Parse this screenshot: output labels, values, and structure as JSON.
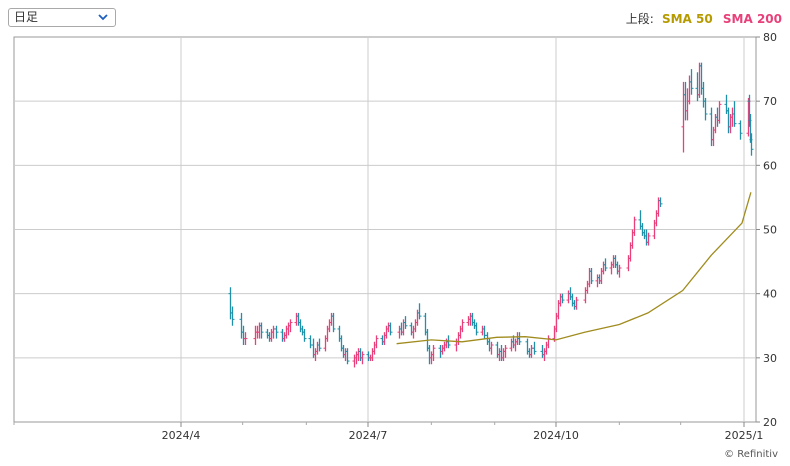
{
  "controls": {
    "period_select": {
      "value": "日足"
    }
  },
  "legend": {
    "panel_label": "上段:",
    "sma50_label": "SMA 50",
    "sma200_label": "SMA 200"
  },
  "copyright": "© Refinitiv",
  "colors": {
    "up": "#e8407a",
    "down": "#1e90a8",
    "sma50": "#a08c1e",
    "sma200": "#e8407a",
    "grid": "#cccccc"
  },
  "chart_data": {
    "type": "line",
    "title": "",
    "xlabel": "",
    "ylabel": "",
    "ylim": [
      20,
      80
    ],
    "y_ticks": [
      20,
      30,
      40,
      50,
      60,
      70,
      80
    ],
    "x_ticks": [
      "2024/4",
      "2024/7",
      "2024/10",
      "2025/1"
    ],
    "grid": true,
    "axis_position": "right",
    "legend_position": "top-right",
    "ohlc": [
      [
        "2024-04-25",
        40,
        41,
        36,
        37
      ],
      [
        "2024-04-26",
        37,
        38,
        35,
        36
      ],
      [
        "2024-04-30",
        36,
        37,
        33,
        34
      ],
      [
        "2024-05-01",
        34,
        35,
        32,
        33
      ],
      [
        "2024-05-02",
        33,
        34,
        32,
        33
      ],
      [
        "2024-05-07",
        33,
        35,
        32,
        34
      ],
      [
        "2024-05-08",
        34,
        35,
        33,
        34
      ],
      [
        "2024-05-09",
        34,
        35.5,
        33,
        35
      ],
      [
        "2024-05-10",
        35,
        35.5,
        33,
        34
      ],
      [
        "2024-05-13",
        34,
        34.5,
        33,
        33.5
      ],
      [
        "2024-05-14",
        33.5,
        34,
        32.5,
        33
      ],
      [
        "2024-05-15",
        33,
        34.5,
        32.5,
        34
      ],
      [
        "2024-05-16",
        34,
        35,
        33,
        34.5
      ],
      [
        "2024-05-17",
        34.5,
        35,
        33,
        34
      ],
      [
        "2024-05-20",
        34,
        34.5,
        32.5,
        33
      ],
      [
        "2024-05-21",
        33,
        34,
        32.5,
        33.5
      ],
      [
        "2024-05-22",
        33.5,
        35,
        33,
        34.5
      ],
      [
        "2024-05-23",
        34.5,
        35.5,
        33.5,
        35
      ],
      [
        "2024-05-24",
        35,
        36,
        34,
        35.5
      ],
      [
        "2024-05-27",
        35.5,
        37,
        35,
        36.5
      ],
      [
        "2024-05-28",
        36.5,
        37,
        35,
        35.5
      ],
      [
        "2024-05-29",
        35.5,
        36,
        34,
        34.5
      ],
      [
        "2024-05-30",
        34.5,
        35,
        33.5,
        34
      ],
      [
        "2024-05-31",
        34,
        34.5,
        32.5,
        33
      ],
      [
        "2024-06-03",
        33,
        33.5,
        31.5,
        32
      ],
      [
        "2024-06-04",
        32,
        33,
        30,
        30.5
      ],
      [
        "2024-06-05",
        30.5,
        31.5,
        29.5,
        31
      ],
      [
        "2024-06-06",
        31,
        32.5,
        30.5,
        32
      ],
      [
        "2024-06-07",
        32,
        33,
        31,
        31.5
      ],
      [
        "2024-06-10",
        31.5,
        33.5,
        31,
        33
      ],
      [
        "2024-06-11",
        33,
        35,
        32.5,
        34.5
      ],
      [
        "2024-06-12",
        34.5,
        36,
        34,
        35.5
      ],
      [
        "2024-06-13",
        35.5,
        37,
        35,
        36.5
      ],
      [
        "2024-06-14",
        36.5,
        37,
        34,
        34.5
      ],
      [
        "2024-06-17",
        34.5,
        35,
        32.5,
        33
      ],
      [
        "2024-06-18",
        33,
        33.5,
        31,
        31.5
      ],
      [
        "2024-06-19",
        31.5,
        32,
        30,
        30.5
      ],
      [
        "2024-06-20",
        30.5,
        31.5,
        29.5,
        31
      ],
      [
        "2024-06-21",
        31,
        31.5,
        29,
        29.5
      ],
      [
        "2024-06-24",
        29.5,
        30.5,
        28.5,
        30
      ],
      [
        "2024-06-25",
        30,
        31,
        29,
        30.5
      ],
      [
        "2024-06-26",
        30.5,
        31.5,
        29.5,
        31
      ],
      [
        "2024-06-27",
        31,
        31.5,
        29.5,
        30
      ],
      [
        "2024-06-28",
        30,
        31,
        29,
        30.5
      ],
      [
        "2024-07-01",
        30.5,
        31,
        29.5,
        30
      ],
      [
        "2024-07-02",
        30,
        30.5,
        29.5,
        30
      ],
      [
        "2024-07-03",
        30,
        31.5,
        29.5,
        31
      ],
      [
        "2024-07-04",
        31,
        32.5,
        30.5,
        32
      ],
      [
        "2024-07-05",
        32,
        33.5,
        31.5,
        33
      ],
      [
        "2024-07-08",
        33,
        33.5,
        32,
        32.5
      ],
      [
        "2024-07-09",
        32.5,
        34,
        32,
        33.5
      ],
      [
        "2024-07-10",
        33.5,
        35,
        33,
        34.5
      ],
      [
        "2024-07-11",
        34.5,
        35.5,
        34,
        35
      ],
      [
        "2024-07-12",
        35,
        35.5,
        33.5,
        34
      ],
      [
        "2024-07-16",
        34,
        35,
        33,
        34.5
      ],
      [
        "2024-07-17",
        34.5,
        35.5,
        33.5,
        34
      ],
      [
        "2024-07-18",
        34,
        36,
        33.5,
        35.5
      ],
      [
        "2024-07-19",
        35.5,
        36.5,
        34.5,
        35
      ],
      [
        "2024-07-22",
        35,
        35.5,
        33.5,
        34
      ],
      [
        "2024-07-23",
        34,
        35,
        33,
        34.5
      ],
      [
        "2024-07-24",
        34.5,
        36,
        34,
        35.5
      ],
      [
        "2024-07-25",
        35.5,
        37.5,
        35,
        37
      ],
      [
        "2024-07-26",
        37,
        38.5,
        36,
        36.5
      ],
      [
        "2024-07-29",
        36.5,
        37,
        33.5,
        34
      ],
      [
        "2024-07-30",
        34,
        34.5,
        31,
        31.5
      ],
      [
        "2024-07-31",
        31.5,
        32,
        29,
        30
      ],
      [
        "2024-08-01",
        30,
        31,
        29,
        30.5
      ],
      [
        "2024-08-02",
        30.5,
        32,
        29.5,
        31.5
      ],
      [
        "2024-08-05",
        31.5,
        32,
        30,
        31
      ],
      [
        "2024-08-06",
        31,
        32,
        30.5,
        31.5
      ],
      [
        "2024-08-07",
        31.5,
        32.5,
        31,
        32
      ],
      [
        "2024-08-08",
        32,
        33,
        31.5,
        32.5
      ],
      [
        "2024-08-09",
        32.5,
        33.5,
        31.5,
        32
      ],
      [
        "2024-08-13",
        32,
        33,
        31,
        32.5
      ],
      [
        "2024-08-14",
        32.5,
        34,
        32,
        33.5
      ],
      [
        "2024-08-15",
        33.5,
        35,
        33,
        34.5
      ],
      [
        "2024-08-16",
        34.5,
        36,
        34,
        35.5
      ],
      [
        "2024-08-19",
        35.5,
        36.5,
        35,
        36
      ],
      [
        "2024-08-20",
        36,
        37,
        35,
        36.5
      ],
      [
        "2024-08-21",
        36.5,
        37,
        35,
        35.5
      ],
      [
        "2024-08-22",
        35.5,
        36,
        34.5,
        35
      ],
      [
        "2024-08-23",
        35,
        35.5,
        33.5,
        34
      ],
      [
        "2024-08-26",
        34,
        35,
        33.5,
        34.5
      ],
      [
        "2024-08-27",
        34.5,
        35,
        33,
        33.5
      ],
      [
        "2024-08-28",
        33.5,
        34,
        32,
        32.5
      ],
      [
        "2024-08-29",
        32.5,
        33,
        31,
        31.5
      ],
      [
        "2024-08-30",
        31.5,
        32.5,
        30.5,
        32
      ],
      [
        "2024-09-02",
        32,
        32.5,
        30,
        30.5
      ],
      [
        "2024-09-03",
        30.5,
        31.5,
        29.5,
        31
      ],
      [
        "2024-09-04",
        31,
        32,
        29.5,
        30
      ],
      [
        "2024-09-05",
        30,
        31.5,
        29.5,
        31
      ],
      [
        "2024-09-06",
        31,
        32,
        30,
        31.5
      ],
      [
        "2024-09-09",
        31.5,
        33,
        31,
        32.5
      ],
      [
        "2024-09-10",
        32.5,
        33.5,
        31.5,
        32
      ],
      [
        "2024-09-11",
        32,
        33,
        31,
        32.5
      ],
      [
        "2024-09-12",
        32.5,
        34,
        32,
        33
      ],
      [
        "2024-09-13",
        33,
        34,
        32,
        32.5
      ],
      [
        "2024-09-17",
        32.5,
        33,
        30.5,
        31
      ],
      [
        "2024-09-18",
        31,
        31.5,
        30,
        30.5
      ],
      [
        "2024-09-19",
        30.5,
        32,
        30,
        31.5
      ],
      [
        "2024-09-20",
        31.5,
        32.5,
        30.5,
        31
      ],
      [
        "2024-09-24",
        31,
        32,
        30,
        30.5
      ],
      [
        "2024-09-25",
        30.5,
        31.5,
        29.5,
        31
      ],
      [
        "2024-09-26",
        31,
        32.5,
        30.5,
        32
      ],
      [
        "2024-09-27",
        32,
        33.5,
        31.5,
        33
      ],
      [
        "2024-09-30",
        33,
        35,
        32.5,
        34.5
      ],
      [
        "2024-10-01",
        34.5,
        37,
        34,
        36.5
      ],
      [
        "2024-10-02",
        36.5,
        39,
        36,
        38.5
      ],
      [
        "2024-10-03",
        38.5,
        40,
        38,
        39.5
      ],
      [
        "2024-10-04",
        39.5,
        40,
        38.5,
        39
      ],
      [
        "2024-10-07",
        39,
        40.5,
        38.5,
        40
      ],
      [
        "2024-10-08",
        40,
        41,
        39,
        39.5
      ],
      [
        "2024-10-09",
        39.5,
        40,
        38,
        38.5
      ],
      [
        "2024-10-10",
        38.5,
        39,
        37.5,
        38
      ],
      [
        "2024-10-11",
        38,
        39.5,
        37.5,
        39
      ],
      [
        "2024-10-15",
        39,
        41,
        38.5,
        40.5
      ],
      [
        "2024-10-16",
        40.5,
        42,
        40,
        41.5
      ],
      [
        "2024-10-17",
        41.5,
        44,
        41,
        43.5
      ],
      [
        "2024-10-18",
        43.5,
        44,
        41.5,
        42
      ],
      [
        "2024-10-21",
        42,
        43,
        41,
        42.5
      ],
      [
        "2024-10-22",
        42.5,
        43,
        41.5,
        42
      ],
      [
        "2024-10-23",
        42,
        44,
        41.5,
        43.5
      ],
      [
        "2024-10-24",
        43.5,
        45,
        43,
        44.5
      ],
      [
        "2024-10-25",
        44.5,
        45.5,
        43.5,
        44
      ],
      [
        "2024-10-28",
        44,
        45,
        43,
        44.5
      ],
      [
        "2024-10-29",
        44.5,
        46,
        44,
        45.5
      ],
      [
        "2024-10-30",
        45.5,
        46,
        44,
        44.5
      ],
      [
        "2024-10-31",
        44.5,
        45,
        43,
        43.5
      ],
      [
        "2024-11-01",
        43.5,
        44.5,
        42.5,
        44
      ],
      [
        "2024-11-05",
        44,
        46,
        43.5,
        45.5
      ],
      [
        "2024-11-06",
        45.5,
        48,
        45,
        47.5
      ],
      [
        "2024-11-07",
        47.5,
        50,
        47,
        49.5
      ],
      [
        "2024-11-08",
        49.5,
        52,
        49,
        51.5
      ],
      [
        "2024-11-11",
        51.5,
        53,
        50,
        50.5
      ],
      [
        "2024-11-12",
        50.5,
        51,
        49,
        49.5
      ],
      [
        "2024-11-13",
        49.5,
        50,
        48.5,
        49
      ],
      [
        "2024-11-14",
        49,
        50,
        47.5,
        48
      ],
      [
        "2024-11-15",
        48,
        49.5,
        47.5,
        49
      ],
      [
        "2024-11-18",
        49,
        51.5,
        48.5,
        51
      ],
      [
        "2024-11-19",
        51,
        53,
        50.5,
        52.5
      ],
      [
        "2024-11-20",
        52.5,
        55,
        52,
        54.5
      ],
      [
        "2024-11-21",
        54.5,
        55,
        53.5,
        54
      ],
      [
        "2024-12-02",
        66,
        73,
        62,
        71
      ],
      [
        "2024-12-03",
        71,
        73,
        67,
        68.5
      ],
      [
        "2024-12-04",
        68.5,
        72,
        67,
        70
      ],
      [
        "2024-12-05",
        70,
        74,
        69.5,
        73
      ],
      [
        "2024-12-06",
        73,
        75,
        71,
        72
      ],
      [
        "2024-12-09",
        72,
        74.5,
        70,
        71
      ],
      [
        "2024-12-10",
        71,
        76,
        70.5,
        75.5
      ],
      [
        "2024-12-11",
        75.5,
        76,
        71,
        72
      ],
      [
        "2024-12-12",
        72,
        73,
        69,
        70
      ],
      [
        "2024-12-13",
        70,
        70.5,
        67,
        68
      ],
      [
        "2024-12-16",
        68,
        69,
        63,
        64
      ],
      [
        "2024-12-17",
        64,
        66,
        63,
        65.5
      ],
      [
        "2024-12-18",
        65.5,
        68,
        65,
        67.5
      ],
      [
        "2024-12-19",
        67.5,
        69,
        66,
        67
      ],
      [
        "2024-12-20",
        67,
        70,
        66.5,
        69.5
      ],
      [
        "2024-12-23",
        69.5,
        71,
        68,
        68.5
      ],
      [
        "2024-12-24",
        68.5,
        69,
        65,
        66
      ],
      [
        "2024-12-25",
        66,
        68,
        65,
        67.5
      ],
      [
        "2024-12-26",
        67.5,
        69,
        66,
        68
      ],
      [
        "2024-12-27",
        68,
        70,
        66,
        66.5
      ],
      [
        "2024-12-30",
        66.5,
        67,
        64,
        65
      ],
      [
        "2025-01-06",
        65,
        70.5,
        64.5,
        70
      ],
      [
        "2025-01-07",
        70,
        71,
        66,
        67
      ],
      [
        "2025-01-08",
        67,
        68,
        63.5,
        64
      ],
      [
        "2025-01-09",
        64,
        65,
        61.5,
        62.5
      ]
    ],
    "series": [
      {
        "name": "SMA 50",
        "points": [
          [
            "2024-07-15",
            32.2
          ],
          [
            "2024-08-01",
            32.8
          ],
          [
            "2024-08-16",
            32.5
          ],
          [
            "2024-09-02",
            33.2
          ],
          [
            "2024-09-16",
            33.3
          ],
          [
            "2024-10-01",
            32.8
          ],
          [
            "2024-10-15",
            34.0
          ],
          [
            "2024-11-01",
            35.2
          ],
          [
            "2024-11-15",
            37.0
          ],
          [
            "2024-12-02",
            40.5
          ],
          [
            "2024-12-16",
            46.0
          ],
          [
            "2024-12-31",
            51.0
          ],
          [
            "2025-01-09",
            55.8
          ]
        ]
      },
      {
        "name": "SMA 200",
        "points": []
      }
    ]
  }
}
